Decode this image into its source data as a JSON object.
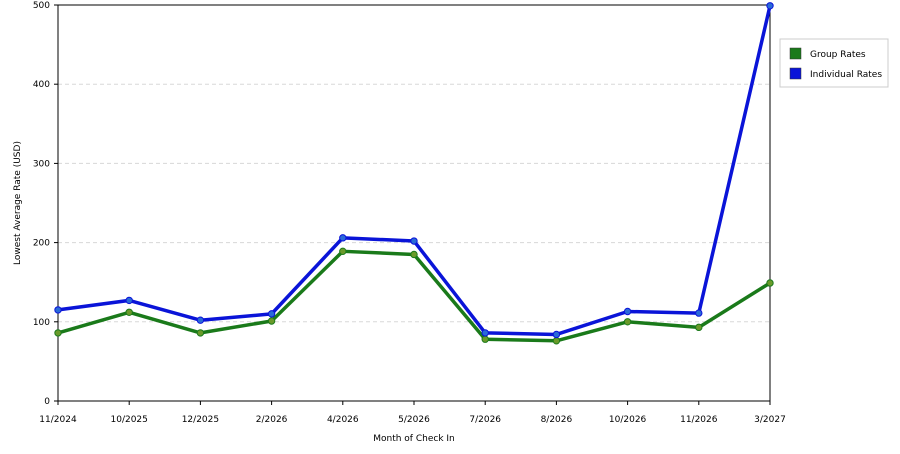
{
  "chart_data": {
    "type": "line",
    "title": "",
    "xlabel": "Month of Check In",
    "ylabel": "Lowest Average Rate (USD)",
    "ylim": [
      0,
      500
    ],
    "yticks": [
      "0",
      "100",
      "200",
      "300",
      "400",
      "500"
    ],
    "categories": [
      "11/2024",
      "10/2025",
      "12/2025",
      "2/2026",
      "4/2026",
      "5/2026",
      "7/2026",
      "8/2026",
      "10/2026",
      "11/2026",
      "3/2027"
    ],
    "grid": true,
    "legend_position": "top-right",
    "series": [
      {
        "name": "Group Rates",
        "color": "#1a7a1a",
        "marker_color": "#6a9a2a",
        "values": [
          86,
          112,
          86,
          101,
          189,
          185,
          78,
          76,
          100,
          93,
          149
        ]
      },
      {
        "name": "Individual Rates",
        "color": "#0a14d8",
        "marker_color": "#2a6ad8",
        "values": [
          115,
          127,
          102,
          110,
          206,
          202,
          86,
          84,
          113,
          111,
          499
        ]
      }
    ]
  }
}
